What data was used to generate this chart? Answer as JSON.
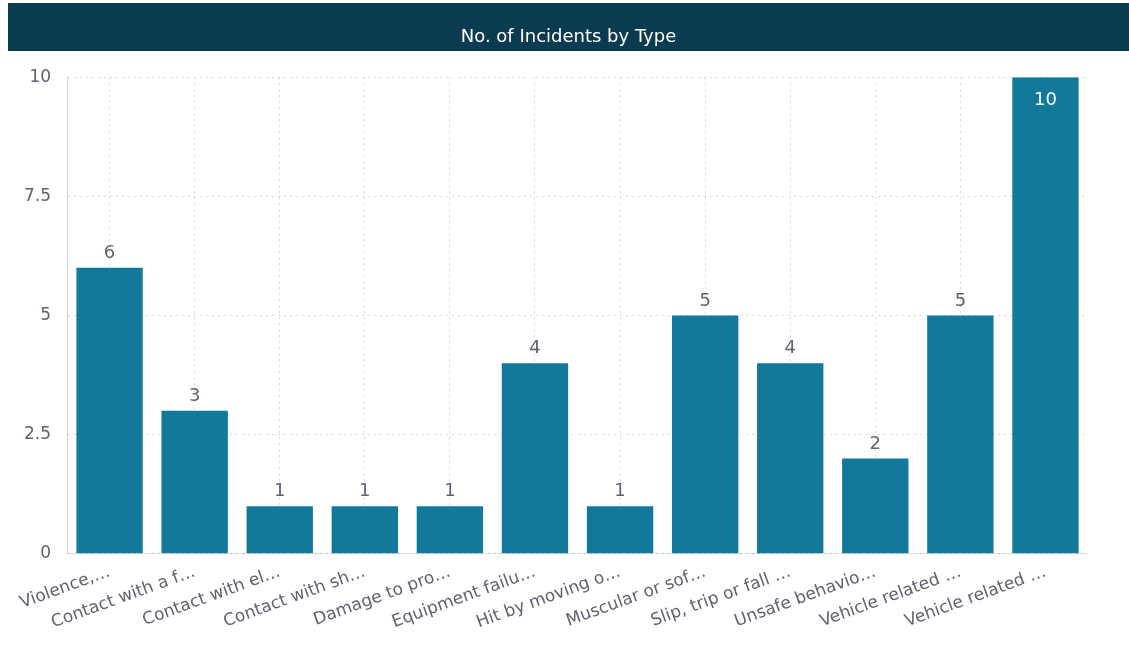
{
  "chart_data": {
    "type": "bar",
    "title": "No. of Incidents by Type",
    "categories": [
      "Violence,…",
      "Contact with a f…",
      "Contact with el…",
      "Contact with sh…",
      "Damage to pro…",
      "Equipment failu…",
      "Hit by moving o…",
      "Muscular or sof…",
      "Slip, trip or fall …",
      "Unsafe behavio…",
      "Vehicle related …",
      "Vehicle related …"
    ],
    "values": [
      6,
      3,
      1,
      1,
      1,
      4,
      1,
      5,
      4,
      2,
      5,
      10
    ],
    "color": "#12799a",
    "ylim": [
      0,
      10
    ],
    "yticks": [
      0,
      2.5,
      5,
      7.5,
      10
    ],
    "grid": true,
    "data_labels": true,
    "legend": false
  }
}
